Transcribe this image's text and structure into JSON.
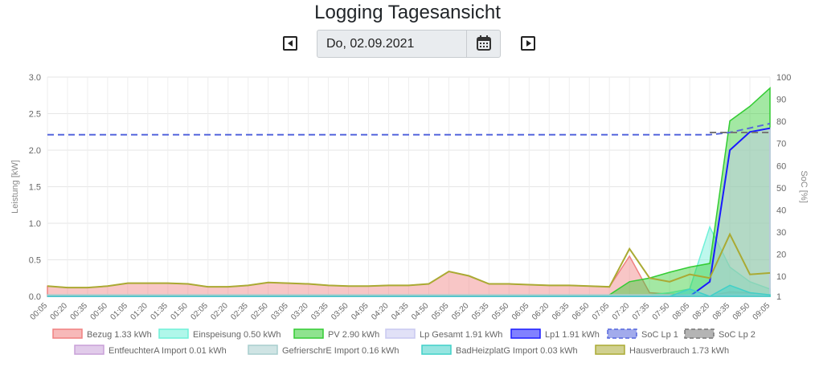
{
  "header": {
    "title": "Logging Tagesansicht",
    "date_value": "Do, 02.09.2021"
  },
  "icons": {
    "prev": "caret-left-square-icon",
    "next": "caret-right-square-icon",
    "calendar": "calendar-icon"
  },
  "chart_data": {
    "type": "area",
    "title": "",
    "ylabel": "Leistung [kW]",
    "y2label": "SoC [%]",
    "ylim": [
      0,
      3.0
    ],
    "y2lim": [
      1,
      100
    ],
    "yticks": [
      "0.0",
      "0.5",
      "1.0",
      "1.5",
      "2.0",
      "2.5",
      "3.0"
    ],
    "y2ticks": [
      "1",
      "10",
      "20",
      "30",
      "40",
      "50",
      "60",
      "70",
      "80",
      "90",
      "100"
    ],
    "grid": true,
    "legend_position": "bottom",
    "x": [
      "00:05",
      "00:20",
      "00:35",
      "00:50",
      "01:05",
      "01:20",
      "01:35",
      "01:50",
      "02:05",
      "02:20",
      "02:35",
      "02:50",
      "03:05",
      "03:20",
      "03:35",
      "03:50",
      "04:05",
      "04:20",
      "04:35",
      "04:50",
      "05:05",
      "05:20",
      "05:35",
      "05:50",
      "06:05",
      "06:20",
      "06:35",
      "06:50",
      "07:05",
      "07:20",
      "07:35",
      "07:50",
      "08:05",
      "08:20",
      "08:35",
      "08:50",
      "09:05"
    ],
    "series": [
      {
        "name": "Bezug 1.33 kWh",
        "color": "#f08080",
        "fill": true,
        "axis": "y",
        "values": [
          0.14,
          0.12,
          0.12,
          0.14,
          0.18,
          0.18,
          0.18,
          0.17,
          0.13,
          0.13,
          0.15,
          0.19,
          0.18,
          0.17,
          0.15,
          0.14,
          0.14,
          0.15,
          0.15,
          0.17,
          0.34,
          0.28,
          0.17,
          0.17,
          0.16,
          0.15,
          0.15,
          0.14,
          0.13,
          0.55,
          0.05,
          0.03,
          0.02,
          0.01,
          0.06,
          0.05,
          0.02
        ]
      },
      {
        "name": "Einspeisung 0.50 kWh",
        "color": "#6ff0d8",
        "fill": true,
        "axis": "y",
        "values": [
          0,
          0,
          0,
          0,
          0,
          0,
          0,
          0,
          0,
          0,
          0,
          0,
          0,
          0,
          0,
          0,
          0,
          0,
          0,
          0,
          0,
          0,
          0,
          0,
          0,
          0,
          0,
          0,
          0,
          0,
          0.02,
          0.05,
          0.1,
          0.95,
          0.4,
          0.2,
          0.1
        ]
      },
      {
        "name": "PV 2.90 kWh",
        "color": "#33cc33",
        "fill": true,
        "axis": "y",
        "values": [
          0,
          0,
          0,
          0,
          0,
          0,
          0,
          0,
          0,
          0,
          0,
          0,
          0,
          0,
          0,
          0,
          0,
          0,
          0,
          0,
          0,
          0,
          0,
          0,
          0,
          0,
          0,
          0,
          0.02,
          0.2,
          0.25,
          0.33,
          0.4,
          0.45,
          2.4,
          2.6,
          2.85
        ]
      },
      {
        "name": "Lp Gesamt 1.91 kWh",
        "color": "#c8c8f0",
        "fill": true,
        "axis": "y",
        "values": [
          0,
          0,
          0,
          0,
          0,
          0,
          0,
          0,
          0,
          0,
          0,
          0,
          0,
          0,
          0,
          0,
          0,
          0,
          0,
          0,
          0,
          0,
          0,
          0,
          0,
          0,
          0,
          0,
          0,
          0,
          0,
          0,
          0,
          0.2,
          2.0,
          2.25,
          2.3
        ]
      },
      {
        "name": "Lp1 1.91 kWh",
        "color": "#1a1aff",
        "fill": false,
        "axis": "y",
        "values": [
          0,
          0,
          0,
          0,
          0,
          0,
          0,
          0,
          0,
          0,
          0,
          0,
          0,
          0,
          0,
          0,
          0,
          0,
          0,
          0,
          0,
          0,
          0,
          0,
          0,
          0,
          0,
          0,
          0,
          0,
          0,
          0,
          0,
          0.2,
          2.0,
          2.25,
          2.3
        ]
      },
      {
        "name": "SoC Lp 1",
        "color": "#5566dd",
        "fill": false,
        "dashed": true,
        "axis": "y2",
        "values": [
          74,
          74,
          74,
          74,
          74,
          74,
          74,
          74,
          74,
          74,
          74,
          74,
          74,
          74,
          74,
          74,
          74,
          74,
          74,
          74,
          74,
          74,
          74,
          74,
          74,
          74,
          74,
          74,
          74,
          74,
          74,
          74,
          74,
          74,
          75,
          77,
          79
        ]
      },
      {
        "name": "SoC Lp 2",
        "color": "#777777",
        "fill": false,
        "dashed": true,
        "axis": "y2",
        "values": [
          null,
          null,
          null,
          null,
          null,
          null,
          null,
          null,
          null,
          null,
          null,
          null,
          null,
          null,
          null,
          null,
          null,
          null,
          null,
          null,
          null,
          null,
          null,
          null,
          null,
          null,
          null,
          null,
          null,
          null,
          null,
          null,
          null,
          75,
          75,
          75,
          75
        ]
      },
      {
        "name": "EntfeuchterA Import 0.01 kWh",
        "color": "#c8a0d8",
        "fill": true,
        "axis": "y",
        "values": [
          0.01,
          0.01,
          0.01,
          0.01,
          0.01,
          0.01,
          0.01,
          0.01,
          0.01,
          0.01,
          0.01,
          0.01,
          0.01,
          0.01,
          0.01,
          0.01,
          0.01,
          0.01,
          0.01,
          0.01,
          0.01,
          0.01,
          0.01,
          0.01,
          0.01,
          0.01,
          0.01,
          0.01,
          0.01,
          0.01,
          0.01,
          0.01,
          0.01,
          0.01,
          0.01,
          0.01,
          0.01
        ]
      },
      {
        "name": "GefrierschrE Import 0.16 kWh",
        "color": "#a8cece",
        "fill": true,
        "axis": "y",
        "values": [
          0.02,
          0.02,
          0.02,
          0.02,
          0.02,
          0.02,
          0.02,
          0.02,
          0.02,
          0.02,
          0.02,
          0.02,
          0.02,
          0.02,
          0.02,
          0.02,
          0.02,
          0.02,
          0.02,
          0.02,
          0.02,
          0.02,
          0.02,
          0.02,
          0.02,
          0.02,
          0.02,
          0.02,
          0.02,
          0.02,
          0.02,
          0.02,
          0.02,
          0.02,
          0.02,
          0.02,
          0.02
        ]
      },
      {
        "name": "BadHeizplatG Import 0.03 kWh",
        "color": "#40d0c8",
        "fill": true,
        "axis": "y",
        "values": [
          0,
          0,
          0,
          0,
          0,
          0,
          0,
          0,
          0,
          0,
          0,
          0,
          0,
          0,
          0,
          0,
          0,
          0,
          0,
          0,
          0,
          0,
          0,
          0,
          0,
          0,
          0,
          0,
          0,
          0,
          0,
          0,
          0.1,
          0,
          0.15,
          0.05,
          0.02
        ]
      },
      {
        "name": "Hausverbrauch 1.73 kWh",
        "color": "#aaaa33",
        "fill": false,
        "axis": "y",
        "values": [
          0.14,
          0.12,
          0.12,
          0.14,
          0.18,
          0.18,
          0.18,
          0.17,
          0.13,
          0.13,
          0.15,
          0.19,
          0.18,
          0.17,
          0.15,
          0.14,
          0.14,
          0.15,
          0.15,
          0.17,
          0.34,
          0.28,
          0.17,
          0.17,
          0.16,
          0.15,
          0.15,
          0.14,
          0.13,
          0.65,
          0.25,
          0.2,
          0.3,
          0.25,
          0.85,
          0.3,
          0.32
        ]
      }
    ]
  }
}
